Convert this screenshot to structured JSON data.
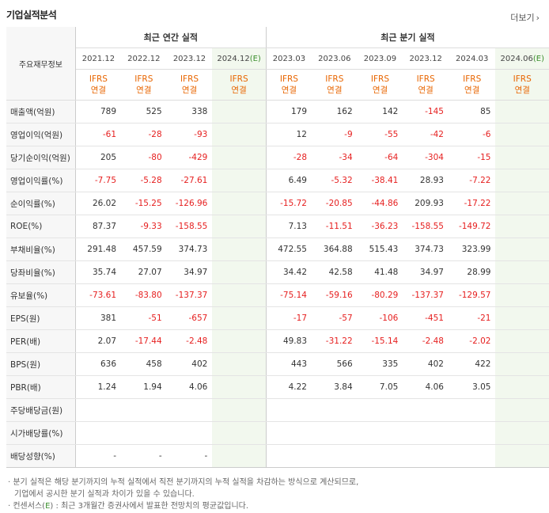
{
  "title": "기업실적분석",
  "more_label": "더보기",
  "header": {
    "row_label": "주요재무정보",
    "annual_group": "최근 연간 실적",
    "quarter_group": "최근 분기 실적",
    "annual_periods": [
      "2021.12",
      "2022.12",
      "2023.12",
      "2024.12(E)"
    ],
    "quarter_periods": [
      "2023.03",
      "2023.06",
      "2023.09",
      "2023.12",
      "2024.03",
      "2024.06(E)"
    ],
    "ifrs": "IFRS",
    "consolidated": "연결"
  },
  "rows": [
    {
      "label": "매출액(억원)",
      "annual": [
        "789",
        "525",
        "338",
        ""
      ],
      "quarter": [
        "179",
        "162",
        "142",
        "-145",
        "85",
        ""
      ]
    },
    {
      "label": "영업이익(억원)",
      "annual": [
        "-61",
        "-28",
        "-93",
        ""
      ],
      "quarter": [
        "12",
        "-9",
        "-55",
        "-42",
        "-6",
        ""
      ]
    },
    {
      "label": "당기순이익(억원)",
      "annual": [
        "205",
        "-80",
        "-429",
        ""
      ],
      "quarter": [
        "-28",
        "-34",
        "-64",
        "-304",
        "-15",
        ""
      ]
    },
    {
      "label": "영업이익률(%)",
      "annual": [
        "-7.75",
        "-5.28",
        "-27.61",
        ""
      ],
      "quarter": [
        "6.49",
        "-5.32",
        "-38.41",
        "28.93",
        "-7.22",
        ""
      ]
    },
    {
      "label": "순이익률(%)",
      "annual": [
        "26.02",
        "-15.25",
        "-126.96",
        ""
      ],
      "quarter": [
        "-15.72",
        "-20.85",
        "-44.86",
        "209.93",
        "-17.22",
        ""
      ]
    },
    {
      "label": "ROE(%)",
      "annual": [
        "87.37",
        "-9.33",
        "-158.55",
        ""
      ],
      "quarter": [
        "7.13",
        "-11.51",
        "-36.23",
        "-158.55",
        "-149.72",
        ""
      ]
    },
    {
      "label": "부채비율(%)",
      "annual": [
        "291.48",
        "457.59",
        "374.73",
        ""
      ],
      "quarter": [
        "472.55",
        "364.88",
        "515.43",
        "374.73",
        "323.99",
        ""
      ]
    },
    {
      "label": "당좌비율(%)",
      "annual": [
        "35.74",
        "27.07",
        "34.97",
        ""
      ],
      "quarter": [
        "34.42",
        "42.58",
        "41.48",
        "34.97",
        "28.99",
        ""
      ]
    },
    {
      "label": "유보율(%)",
      "annual": [
        "-73.61",
        "-83.80",
        "-137.37",
        ""
      ],
      "quarter": [
        "-75.14",
        "-59.16",
        "-80.29",
        "-137.37",
        "-129.57",
        ""
      ]
    },
    {
      "label": "EPS(원)",
      "annual": [
        "381",
        "-51",
        "-657",
        ""
      ],
      "quarter": [
        "-17",
        "-57",
        "-106",
        "-451",
        "-21",
        ""
      ]
    },
    {
      "label": "PER(배)",
      "annual": [
        "2.07",
        "-17.44",
        "-2.48",
        ""
      ],
      "quarter": [
        "49.83",
        "-31.22",
        "-15.14",
        "-2.48",
        "-2.02",
        ""
      ]
    },
    {
      "label": "BPS(원)",
      "annual": [
        "636",
        "458",
        "402",
        ""
      ],
      "quarter": [
        "443",
        "566",
        "335",
        "402",
        "422",
        ""
      ]
    },
    {
      "label": "PBR(배)",
      "annual": [
        "1.24",
        "1.94",
        "4.06",
        ""
      ],
      "quarter": [
        "4.22",
        "3.84",
        "7.05",
        "4.06",
        "3.05",
        ""
      ]
    },
    {
      "label": "주당배당금(원)",
      "annual": [
        "",
        "",
        "",
        ""
      ],
      "quarter": [
        "",
        "",
        "",
        "",
        "",
        ""
      ]
    },
    {
      "label": "시가배당률(%)",
      "annual": [
        "",
        "",
        "",
        ""
      ],
      "quarter": [
        "",
        "",
        "",
        "",
        "",
        ""
      ]
    },
    {
      "label": "배당성향(%)",
      "annual": [
        "-",
        "-",
        "-",
        ""
      ],
      "quarter": [
        "",
        "",
        "",
        "",
        "",
        ""
      ]
    }
  ],
  "notes": {
    "line1": "· 분기 실적은 해당 분기까지의 누적 실적에서 직전 분기까지의 누적 실적을 차감하는 방식으로 계산되므로,",
    "line2": "기업에서 공시한 분기 실적과 차이가 있을 수 있습니다.",
    "line3_prefix": "· 컨센서스(",
    "line3_e": "E",
    "line3_suffix": ") : 최근 3개월간 증권사에서 발표한 전망치의 평균값입니다."
  },
  "colors": {
    "negative": "#e62020",
    "ifrs": "#e86500",
    "estimate_bg": "#f2f8ee",
    "estimate_text": "#3a8e2c"
  }
}
